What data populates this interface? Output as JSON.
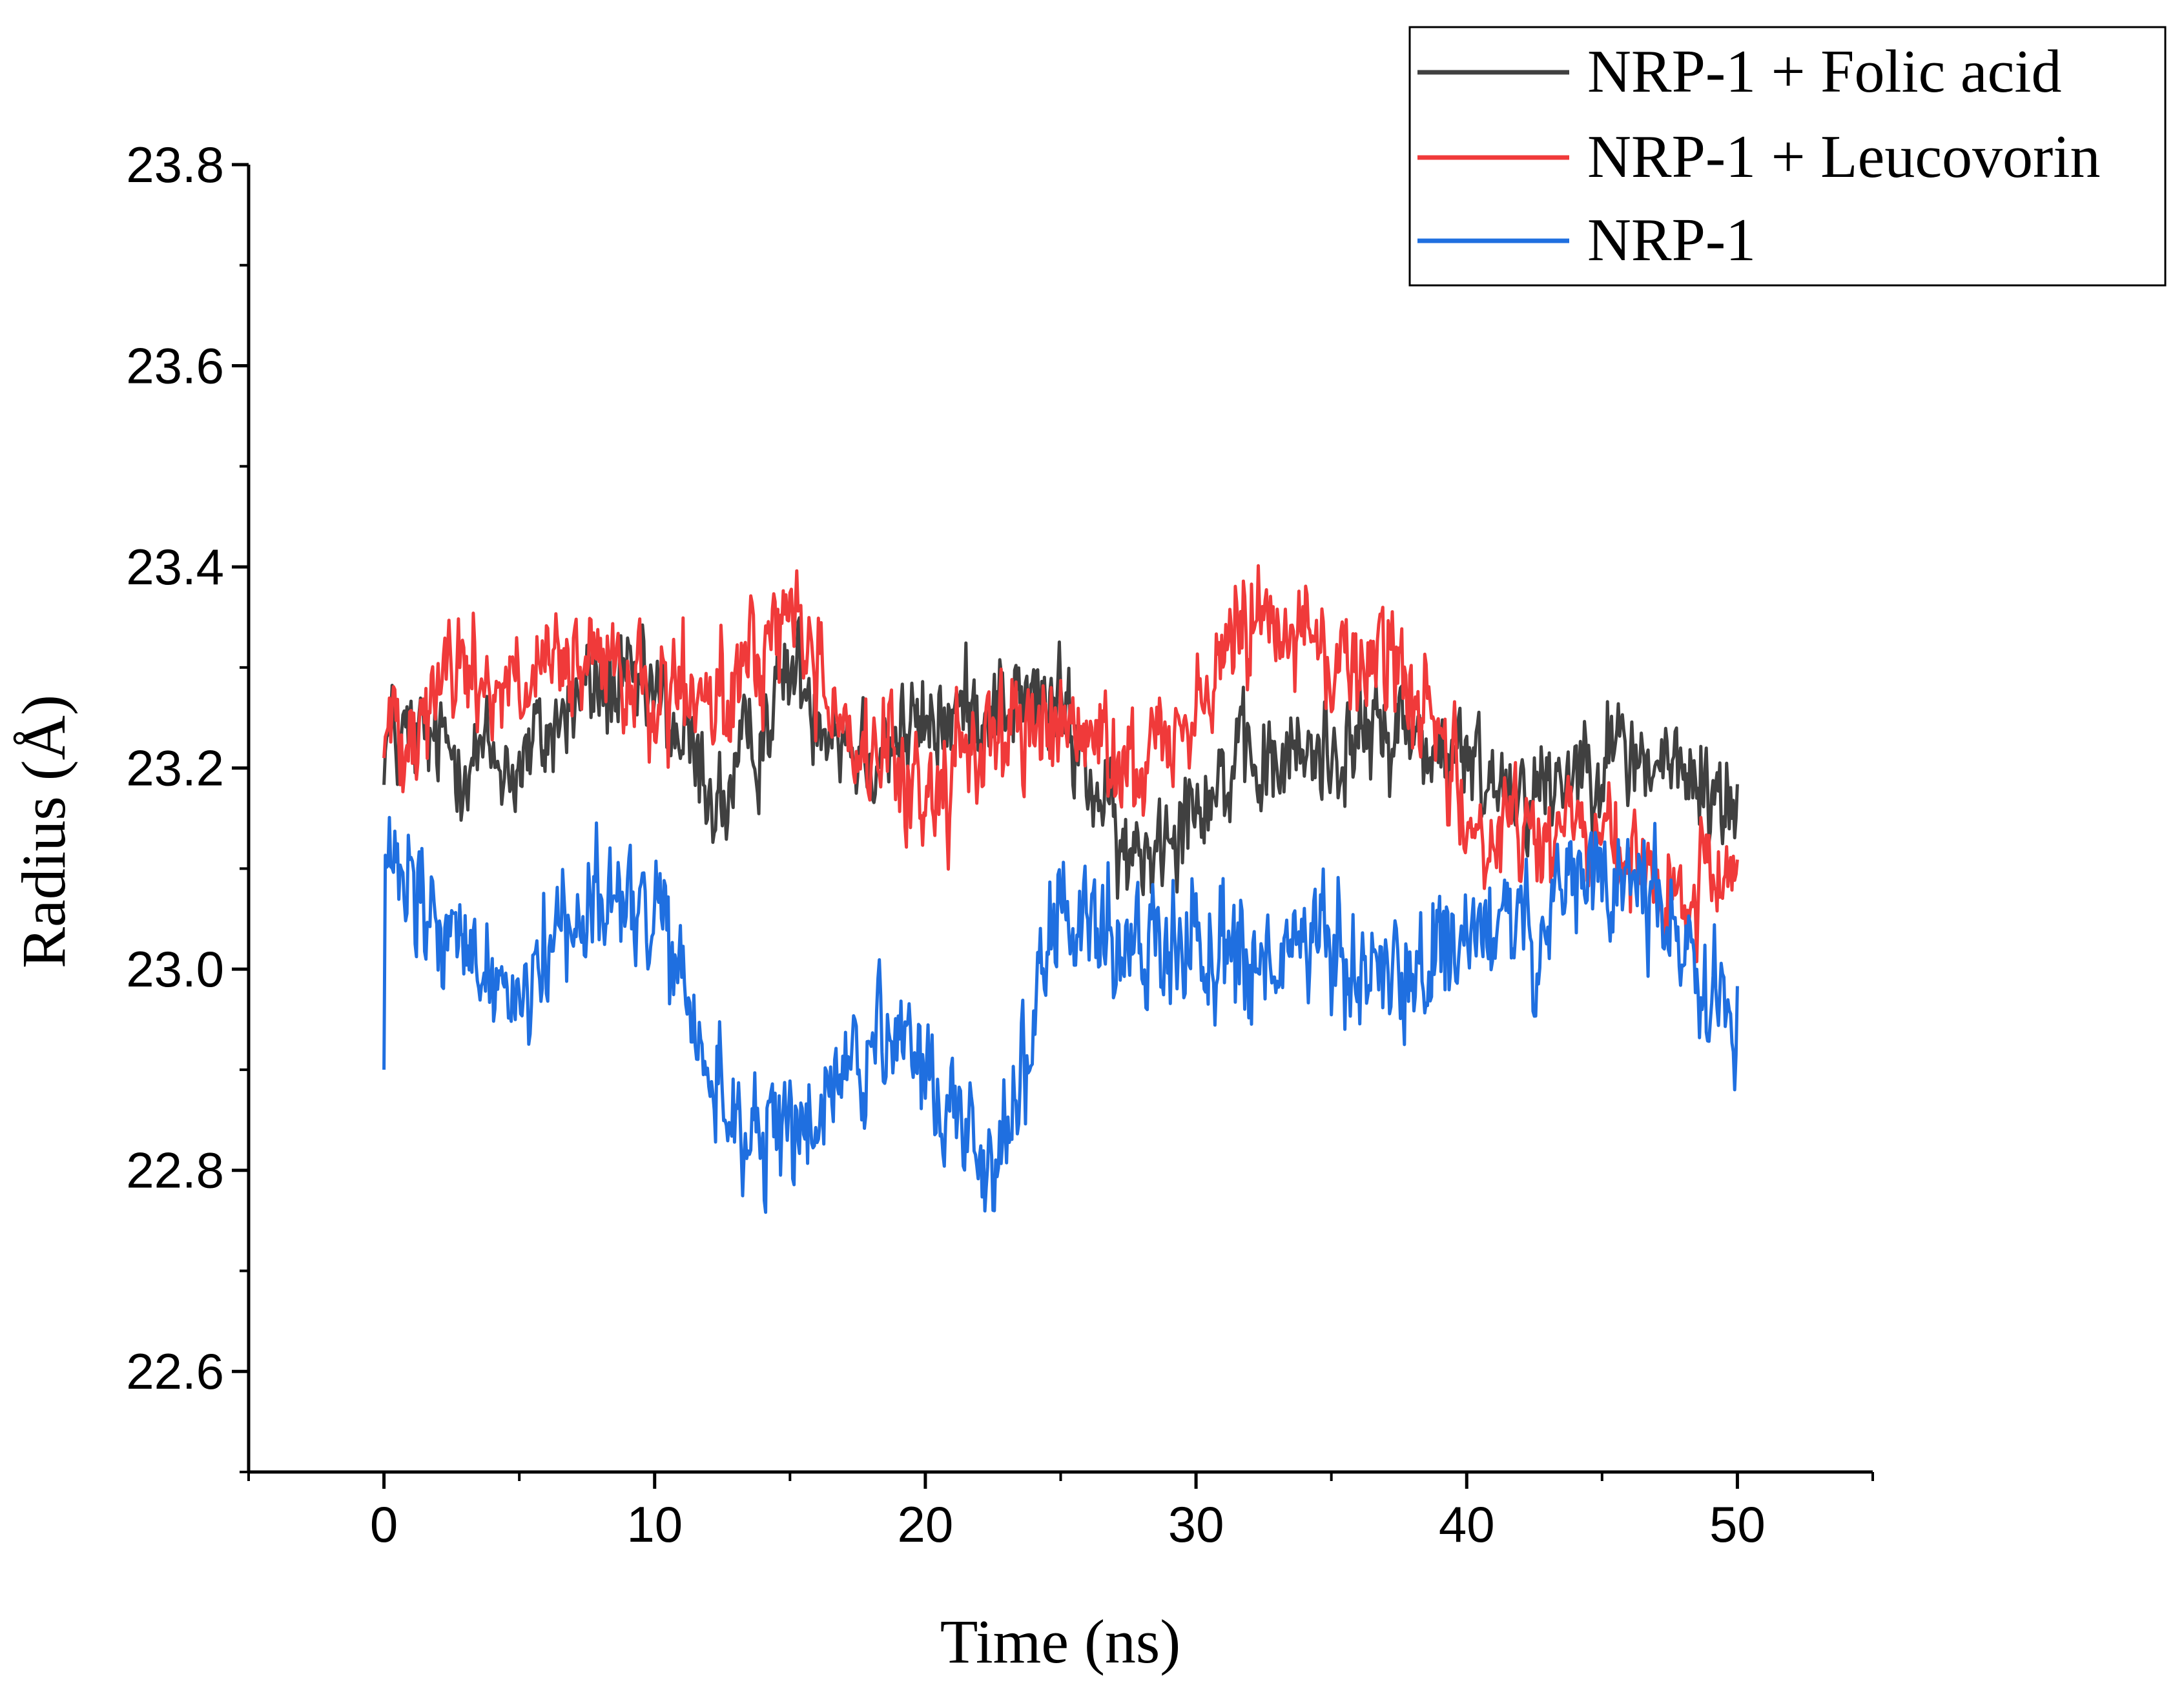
{
  "chart_data": {
    "type": "line",
    "title": "",
    "xlabel": "Time (ns)",
    "ylabel": "Radius (Å)",
    "xlim": [
      -5,
      55
    ],
    "ylim": [
      22.5,
      23.8
    ],
    "xticks": [
      0,
      10,
      20,
      30,
      40,
      50
    ],
    "xtick_labels": [
      "0",
      "10",
      "20",
      "30",
      "40",
      "50"
    ],
    "yticks": [
      22.6,
      22.8,
      23.0,
      23.2,
      23.4,
      23.6,
      23.8
    ],
    "ytick_labels": [
      "22.6",
      "22.8",
      "23.0",
      "23.2",
      "23.4",
      "23.6",
      "23.8"
    ],
    "grid": false,
    "legend_position": "top-right",
    "x": [
      0,
      2.5,
      5,
      7.5,
      10,
      12.5,
      15,
      17.5,
      20,
      22.5,
      25,
      27.5,
      30,
      32.5,
      35,
      37.5,
      40,
      42.5,
      45,
      47.5,
      50
    ],
    "series": [
      {
        "name": "NRP-1 + Folic acid",
        "color": "#404040",
        "values": [
          23.23,
          23.22,
          23.2,
          23.28,
          23.27,
          23.16,
          23.3,
          23.22,
          23.24,
          23.27,
          23.26,
          23.1,
          23.18,
          23.2,
          23.22,
          23.24,
          23.2,
          23.18,
          23.22,
          23.2,
          23.16
        ]
      },
      {
        "name": "NRP-1 + Leucovorin",
        "color": "#f03a3a",
        "values": [
          23.23,
          23.3,
          23.28,
          23.3,
          23.27,
          23.26,
          23.36,
          23.22,
          23.17,
          23.24,
          23.24,
          23.2,
          23.26,
          23.38,
          23.3,
          23.32,
          23.14,
          23.14,
          23.13,
          23.06,
          23.1
        ]
      },
      {
        "name": "NRP-1",
        "color": "#1f6fe0",
        "values": [
          23.1,
          23.02,
          22.98,
          23.08,
          23.05,
          22.86,
          22.82,
          22.92,
          22.9,
          22.8,
          23.05,
          23.02,
          23.04,
          23.0,
          23.02,
          22.98,
          23.04,
          23.03,
          23.1,
          23.05,
          22.95
        ]
      }
    ]
  }
}
